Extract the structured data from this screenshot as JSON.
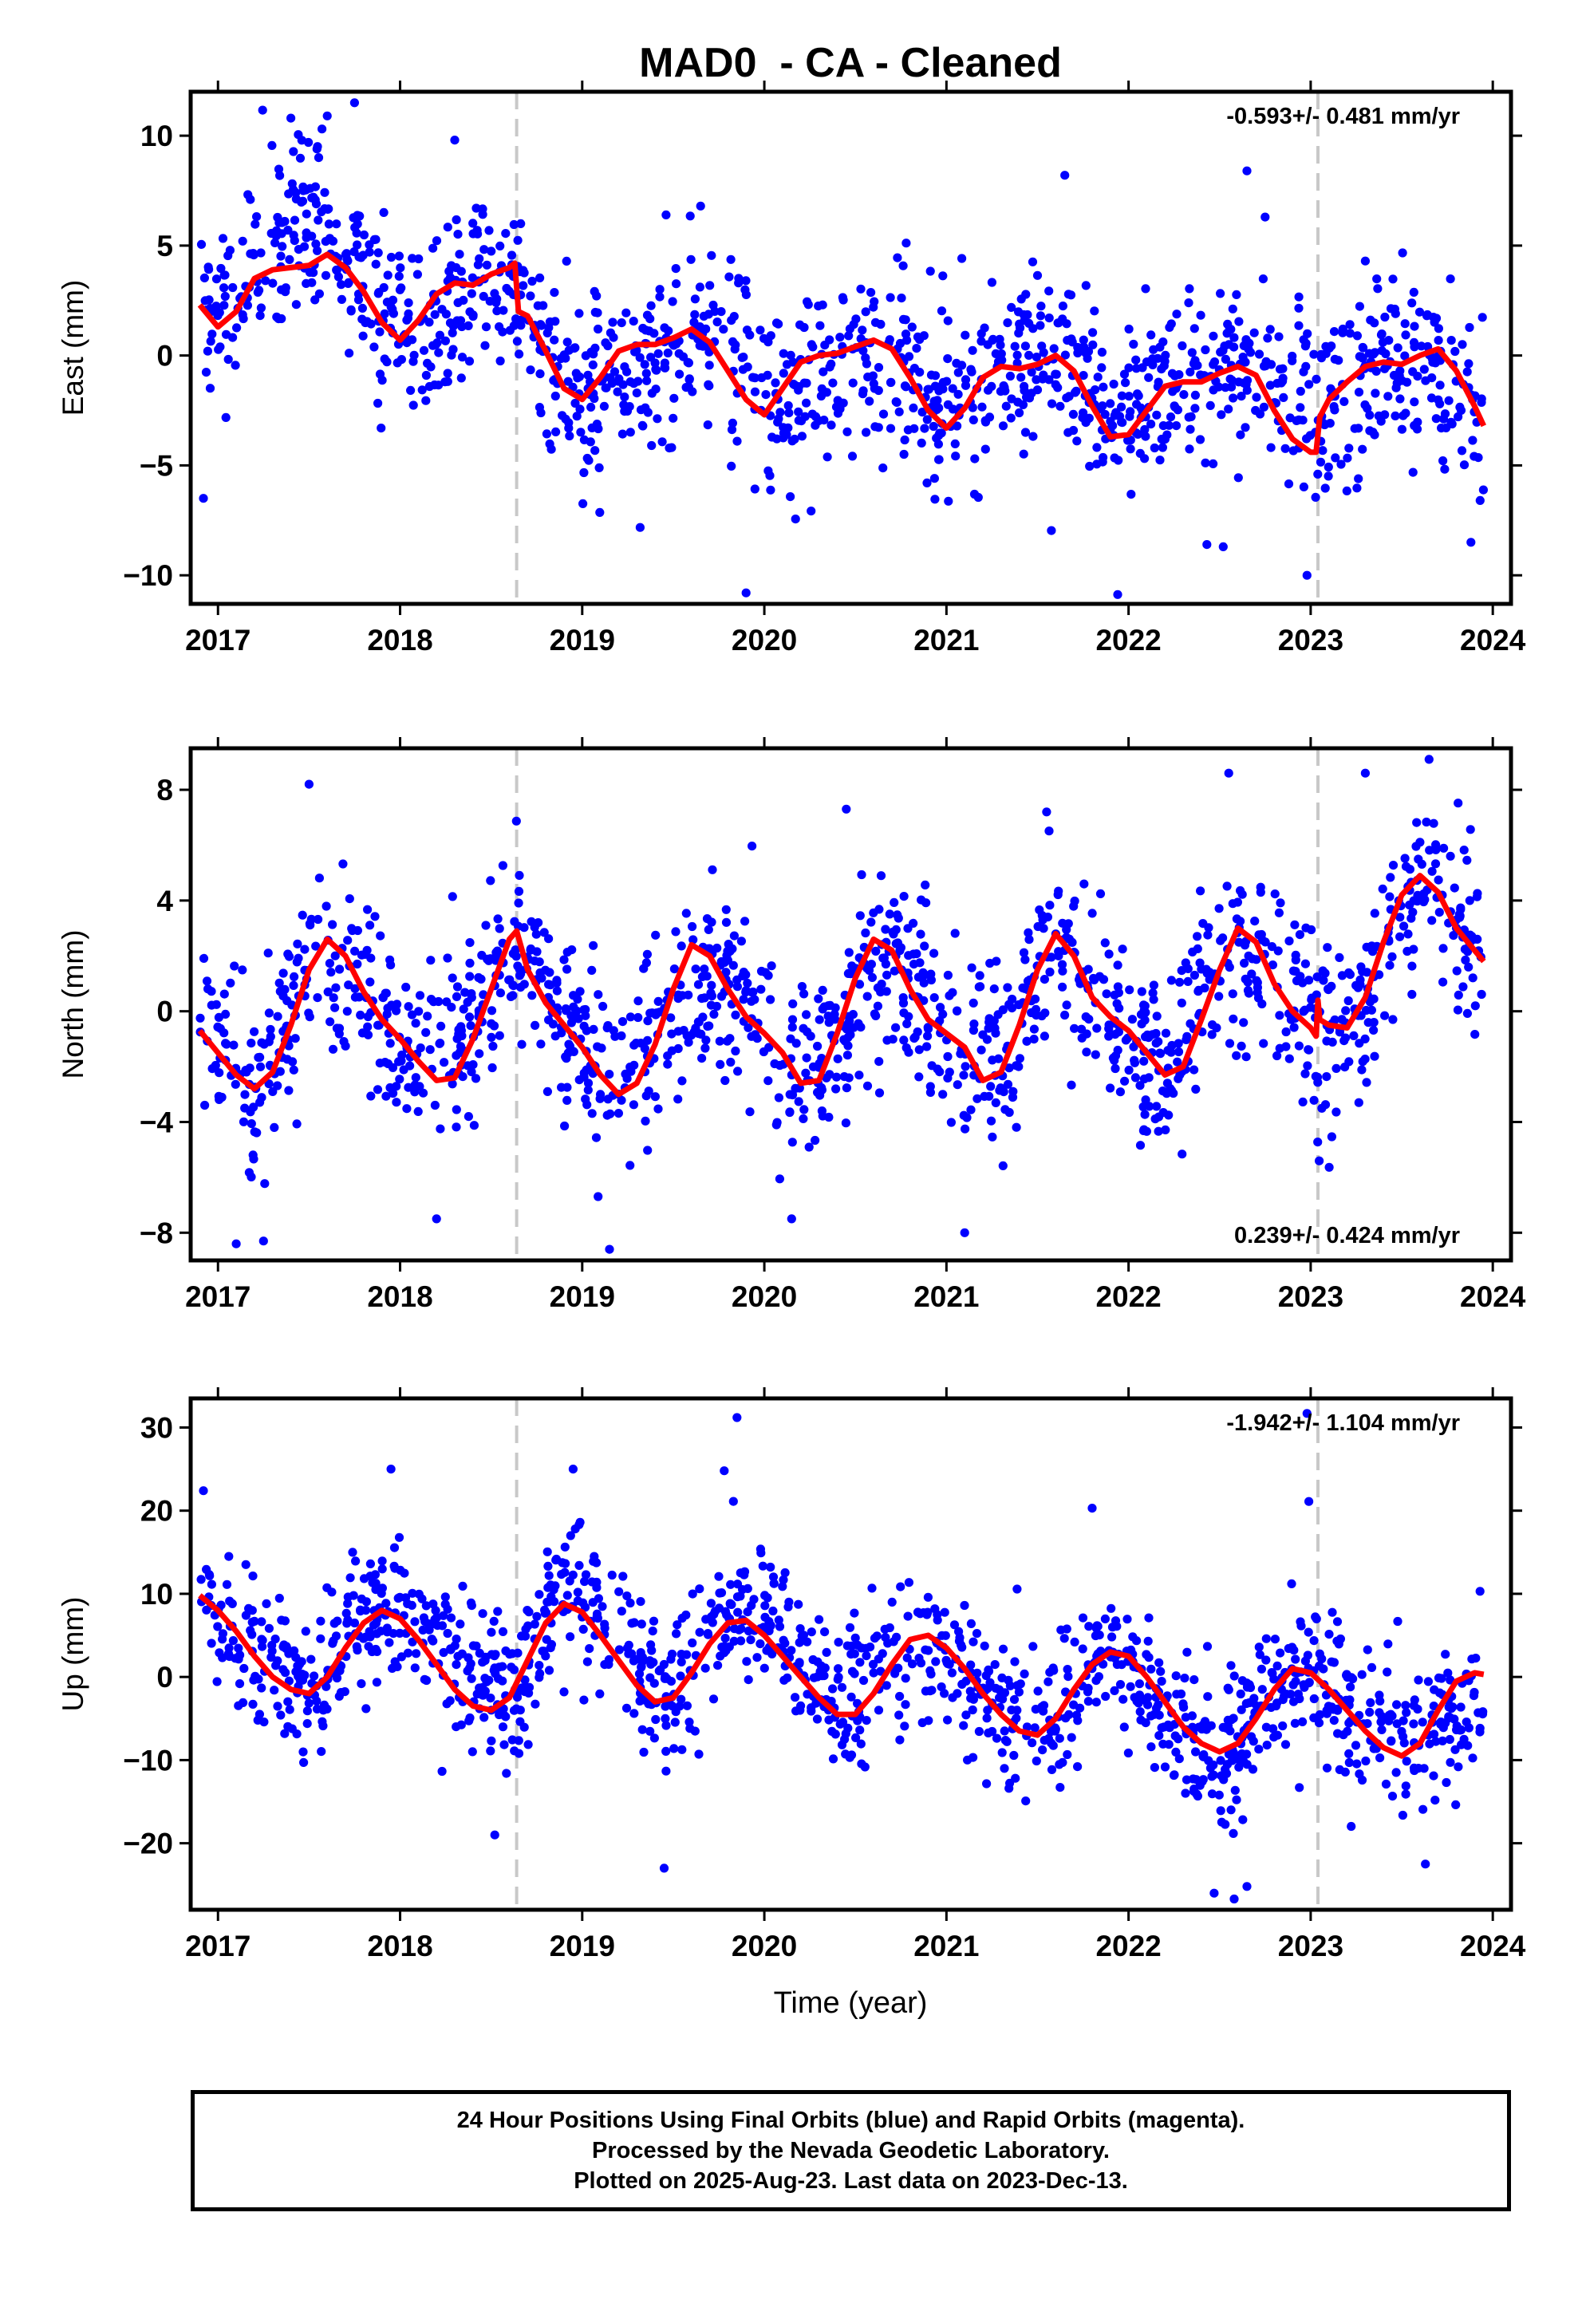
{
  "chart_data": {
    "title": "MAD0  - CA - Cleaned",
    "xlabel": "Time (year)",
    "x_ticks": [
      "2017",
      "2018",
      "2019",
      "2020",
      "2021",
      "2022",
      "2023",
      "2024"
    ],
    "xlim": [
      2016.85,
      2024.1
    ],
    "equipment_change_lines_x": [
      2018.64,
      2023.04
    ],
    "colors": {
      "points": "#0000ff",
      "model": "#ff0000",
      "vertical_lines": "#c8c8c8"
    },
    "panels": [
      {
        "type": "scatter",
        "ylabel": "East (mm)",
        "ylim": [
          -11.3,
          12
        ],
        "y_ticks": [
          10,
          5,
          0,
          -5,
          -10
        ],
        "y_tick_labels": [
          "10",
          "5",
          "0",
          "−5",
          "−10"
        ],
        "rate_text": "-0.593+/- 0.481 mm/yr",
        "rate_position": "top-right",
        "model_curve": {
          "x": [
            2016.9,
            2017.0,
            2017.1,
            2017.2,
            2017.3,
            2017.4,
            2017.5,
            2017.6,
            2017.7,
            2017.8,
            2017.9,
            2018.0,
            2018.1,
            2018.2,
            2018.3,
            2018.4,
            2018.5,
            2018.6,
            2018.63,
            2018.65,
            2018.7,
            2018.8,
            2018.9,
            2019.0,
            2019.1,
            2019.2,
            2019.3,
            2019.4,
            2019.5,
            2019.6,
            2019.7,
            2019.8,
            2019.9,
            2020.0,
            2020.1,
            2020.2,
            2020.3,
            2020.4,
            2020.5,
            2020.6,
            2020.7,
            2020.8,
            2020.9,
            2021.0,
            2021.1,
            2021.2,
            2021.3,
            2021.4,
            2021.5,
            2021.6,
            2021.7,
            2021.8,
            2021.9,
            2022.0,
            2022.1,
            2022.2,
            2022.3,
            2022.4,
            2022.5,
            2022.6,
            2022.7,
            2022.8,
            2022.9,
            2023.0,
            2023.03,
            2023.05,
            2023.1,
            2023.2,
            2023.3,
            2023.4,
            2023.5,
            2023.6,
            2023.7,
            2023.8,
            2023.9,
            2023.95
          ],
          "y": [
            2.3,
            1.3,
            2.0,
            3.5,
            3.9,
            4.0,
            4.1,
            4.6,
            4.0,
            2.9,
            1.5,
            0.7,
            1.6,
            2.8,
            3.3,
            3.2,
            3.7,
            4.0,
            4.2,
            2.0,
            1.8,
            0.2,
            -1.5,
            -2.0,
            -1.0,
            0.2,
            0.5,
            0.5,
            0.8,
            1.2,
            0.6,
            -0.7,
            -2.0,
            -2.7,
            -1.5,
            -0.3,
            0.0,
            0.1,
            0.4,
            0.7,
            0.3,
            -1.0,
            -2.5,
            -3.3,
            -2.4,
            -1.0,
            -0.5,
            -0.6,
            -0.4,
            0.0,
            -0.7,
            -2.3,
            -3.7,
            -3.6,
            -2.5,
            -1.4,
            -1.2,
            -1.2,
            -0.8,
            -0.5,
            -0.9,
            -2.5,
            -3.8,
            -4.4,
            -4.4,
            -2.8,
            -2.0,
            -1.2,
            -0.5,
            -0.3,
            -0.4,
            0.0,
            0.3,
            -0.7,
            -2.3,
            -3.2
          ]
        },
        "points": {
          "x_start": 2016.9,
          "x_end": 2023.95,
          "count": 1400,
          "anchors_x": [
            2016.9,
            2017.2,
            2017.5,
            2017.8,
            2018.1,
            2018.4,
            2018.64,
            2018.9,
            2019.2,
            2019.5,
            2019.8,
            2020.1,
            2020.4,
            2020.7,
            2021.0,
            2021.3,
            2021.6,
            2021.9,
            2022.2,
            2022.5,
            2022.8,
            2023.04,
            2023.3,
            2023.6,
            2023.95
          ],
          "anchors_y": [
            1.5,
            4.0,
            6.0,
            3.5,
            1.0,
            3.5,
            3.5,
            -2.0,
            -0.5,
            0.5,
            1.5,
            -3.0,
            -0.5,
            0.0,
            -2.5,
            -0.5,
            0.5,
            -3.0,
            -1.5,
            -0.5,
            -1.5,
            -3.0,
            -0.5,
            0.0,
            -2.5
          ],
          "spread": 2.0,
          "outliers": [
            [
              2016.92,
              -6.5
            ],
            [
              2017.4,
              10.8
            ],
            [
              2017.6,
              10.9
            ],
            [
              2017.75,
              11.5
            ],
            [
              2018.3,
              9.8
            ],
            [
              2019.65,
              6.8
            ],
            [
              2019.9,
              -10.8
            ],
            [
              2021.65,
              8.2
            ],
            [
              2022.65,
              8.4
            ],
            [
              2022.75,
              6.3
            ],
            [
              2022.43,
              -8.6
            ],
            [
              2022.52,
              -8.7
            ],
            [
              2022.98,
              -10.0
            ],
            [
              2023.88,
              -8.5
            ],
            [
              2023.3,
              4.3
            ]
          ]
        }
      },
      {
        "type": "scatter",
        "ylabel": "North (mm)",
        "ylim": [
          -9,
          9.5
        ],
        "y_ticks": [
          8,
          4,
          0,
          -4,
          -8
        ],
        "y_tick_labels": [
          "8",
          "4",
          "0",
          "−4",
          "−8"
        ],
        "rate_text": "0.239+/- 0.424 mm/yr",
        "rate_position": "bottom-right",
        "model_curve": {
          "x": [
            2016.9,
            2017.0,
            2017.1,
            2017.2,
            2017.3,
            2017.4,
            2017.5,
            2017.6,
            2017.7,
            2017.8,
            2017.9,
            2018.0,
            2018.1,
            2018.2,
            2018.3,
            2018.4,
            2018.5,
            2018.6,
            2018.64,
            2018.7,
            2018.8,
            2018.9,
            2019.0,
            2019.1,
            2019.2,
            2019.3,
            2019.4,
            2019.5,
            2019.6,
            2019.7,
            2019.8,
            2019.9,
            2020.0,
            2020.1,
            2020.2,
            2020.3,
            2020.4,
            2020.5,
            2020.6,
            2020.7,
            2020.8,
            2020.9,
            2021.0,
            2021.1,
            2021.2,
            2021.3,
            2021.4,
            2021.5,
            2021.6,
            2021.7,
            2021.8,
            2021.9,
            2022.0,
            2022.1,
            2022.2,
            2022.3,
            2022.4,
            2022.5,
            2022.6,
            2022.7,
            2022.8,
            2022.9,
            2023.0,
            2023.03,
            2023.04,
            2023.05,
            2023.1,
            2023.2,
            2023.3,
            2023.4,
            2023.5,
            2023.6,
            2023.7,
            2023.8,
            2023.9,
            2023.95
          ],
          "y": [
            -0.7,
            -1.5,
            -2.3,
            -2.8,
            -2.2,
            -0.5,
            1.5,
            2.6,
            2.0,
            0.7,
            -0.3,
            -1.0,
            -1.8,
            -2.5,
            -2.4,
            -1.0,
            0.8,
            2.6,
            2.9,
            1.5,
            0.3,
            -0.5,
            -1.3,
            -2.3,
            -3.0,
            -2.6,
            -1.2,
            0.8,
            2.4,
            2.0,
            0.8,
            -0.2,
            -0.8,
            -1.5,
            -2.6,
            -2.5,
            -0.8,
            1.2,
            2.6,
            2.2,
            0.8,
            -0.3,
            -0.8,
            -1.3,
            -2.5,
            -2.2,
            -0.5,
            1.5,
            2.8,
            2.0,
            0.5,
            -0.2,
            -0.7,
            -1.5,
            -2.3,
            -2.0,
            -0.3,
            1.5,
            3.0,
            2.5,
            1.0,
            0.0,
            -0.6,
            -0.9,
            0.4,
            -0.3,
            -0.5,
            -0.6,
            0.5,
            2.5,
            4.2,
            4.9,
            4.3,
            3.0,
            2.2,
            1.8
          ]
        },
        "points": {
          "x_start": 2016.9,
          "x_end": 2023.95,
          "count": 1400,
          "anchors_x": [
            2016.9,
            2017.2,
            2017.5,
            2017.8,
            2018.1,
            2018.4,
            2018.64,
            2018.9,
            2019.2,
            2019.5,
            2019.8,
            2020.1,
            2020.4,
            2020.7,
            2021.0,
            2021.3,
            2021.6,
            2021.9,
            2022.2,
            2022.5,
            2022.8,
            2023.04,
            2023.3,
            2023.6,
            2023.95
          ],
          "anchors_y": [
            -0.7,
            -2.8,
            1.5,
            1.0,
            -1.8,
            -0.5,
            2.5,
            -0.5,
            -3.0,
            0.5,
            1.5,
            -2.0,
            -1.0,
            2.0,
            -1.0,
            -2.0,
            2.5,
            0.0,
            -2.2,
            2.0,
            1.5,
            -0.8,
            0.5,
            5.0,
            1.8
          ],
          "spread": 1.6,
          "outliers": [
            [
              2017.1,
              -8.4
            ],
            [
              2017.25,
              -8.3
            ],
            [
              2017.5,
              8.2
            ],
            [
              2018.2,
              -7.5
            ],
            [
              2019.15,
              -8.6
            ],
            [
              2020.45,
              7.3
            ],
            [
              2021.55,
              7.2
            ],
            [
              2022.55,
              8.6
            ],
            [
              2023.3,
              8.6
            ],
            [
              2023.65,
              9.1
            ],
            [
              2021.1,
              -8.0
            ],
            [
              2020.15,
              -7.5
            ]
          ]
        }
      },
      {
        "type": "scatter",
        "ylabel": "Up (mm)",
        "ylim": [
          -28,
          33.5
        ],
        "y_ticks": [
          30,
          20,
          10,
          0,
          -10,
          -20
        ],
        "y_tick_labels": [
          "30",
          "20",
          "10",
          "0",
          "−10",
          "−20"
        ],
        "rate_text": "-1.942+/- 1.104 mm/yr",
        "rate_position": "top-right",
        "model_curve": {
          "x": [
            2016.9,
            2017.0,
            2017.1,
            2017.2,
            2017.3,
            2017.4,
            2017.5,
            2017.6,
            2017.7,
            2017.8,
            2017.9,
            2018.0,
            2018.1,
            2018.2,
            2018.3,
            2018.4,
            2018.5,
            2018.6,
            2018.7,
            2018.8,
            2018.9,
            2019.0,
            2019.1,
            2019.2,
            2019.3,
            2019.4,
            2019.5,
            2019.6,
            2019.7,
            2019.8,
            2019.9,
            2020.0,
            2020.1,
            2020.2,
            2020.3,
            2020.4,
            2020.5,
            2020.6,
            2020.7,
            2020.8,
            2020.9,
            2021.0,
            2021.1,
            2021.2,
            2021.3,
            2021.4,
            2021.5,
            2021.6,
            2021.7,
            2021.8,
            2021.9,
            2022.0,
            2022.1,
            2022.2,
            2022.3,
            2022.4,
            2022.5,
            2022.6,
            2022.7,
            2022.8,
            2022.9,
            2023.0,
            2023.1,
            2023.2,
            2023.3,
            2023.4,
            2023.5,
            2023.6,
            2023.7,
            2023.8,
            2023.9,
            2023.95
          ],
          "y": [
            9.8,
            8.0,
            5.5,
            2.5,
            0.0,
            -1.5,
            -2.0,
            0.0,
            3.5,
            6.5,
            8.0,
            7.0,
            4.5,
            1.5,
            -1.5,
            -3.5,
            -4.0,
            -2.5,
            2.0,
            6.5,
            8.8,
            7.8,
            5.0,
            2.0,
            -1.0,
            -3.0,
            -2.5,
            0.5,
            4.0,
            6.5,
            6.8,
            5.0,
            2.5,
            0.0,
            -2.5,
            -4.5,
            -4.5,
            -2.0,
            1.5,
            4.5,
            5.0,
            3.5,
            1.0,
            -2.0,
            -4.5,
            -6.5,
            -7.0,
            -5.0,
            -1.5,
            1.5,
            3.0,
            2.5,
            0.0,
            -3.0,
            -6.0,
            -8.0,
            -9.0,
            -8.0,
            -5.0,
            -1.5,
            1.0,
            0.5,
            -1.5,
            -4.0,
            -6.5,
            -8.5,
            -9.5,
            -8.0,
            -4.0,
            -0.5,
            0.5,
            0.3
          ]
        },
        "points": {
          "x_start": 2016.9,
          "x_end": 2023.95,
          "count": 1400,
          "anchors_x": [
            2016.9,
            2017.2,
            2017.5,
            2017.8,
            2018.1,
            2018.4,
            2018.64,
            2018.9,
            2019.2,
            2019.5,
            2019.8,
            2020.1,
            2020.4,
            2020.7,
            2021.0,
            2021.3,
            2021.6,
            2021.9,
            2022.2,
            2022.5,
            2022.8,
            2023.04,
            2023.3,
            2023.6,
            2023.95
          ],
          "anchors_y": [
            8.0,
            2.5,
            -2.0,
            7.0,
            6.0,
            0.0,
            -1.5,
            12.0,
            4.0,
            -3.0,
            8.0,
            6.0,
            -4.0,
            1.5,
            3.0,
            -5.0,
            -5.0,
            4.0,
            -6.0,
            -10.0,
            -2.0,
            1.0,
            -7.0,
            -7.5,
            -2.0
          ],
          "spread": 4.3,
          "outliers": [
            [
              2016.92,
              22.4
            ],
            [
              2017.95,
              25.0
            ],
            [
              2018.95,
              25.0
            ],
            [
              2019.85,
              31.2
            ],
            [
              2019.78,
              24.8
            ],
            [
              2021.8,
              20.3
            ],
            [
              2022.98,
              31.7
            ],
            [
              2022.99,
              21.1
            ],
            [
              2019.45,
              -23.0
            ],
            [
              2022.47,
              -26.0
            ],
            [
              2022.58,
              -26.7
            ],
            [
              2022.65,
              -25.2
            ],
            [
              2023.63,
              -22.5
            ],
            [
              2023.93,
              10.3
            ],
            [
              2018.52,
              -19.0
            ]
          ]
        }
      }
    ]
  },
  "footer": {
    "line1": "24 Hour Positions Using Final Orbits (blue) and Rapid Orbits (magenta).",
    "line2": "Processed by the Nevada Geodetic Laboratory.",
    "line3": "Plotted on 2025-Aug-23. Last data on 2023-Dec-13."
  }
}
